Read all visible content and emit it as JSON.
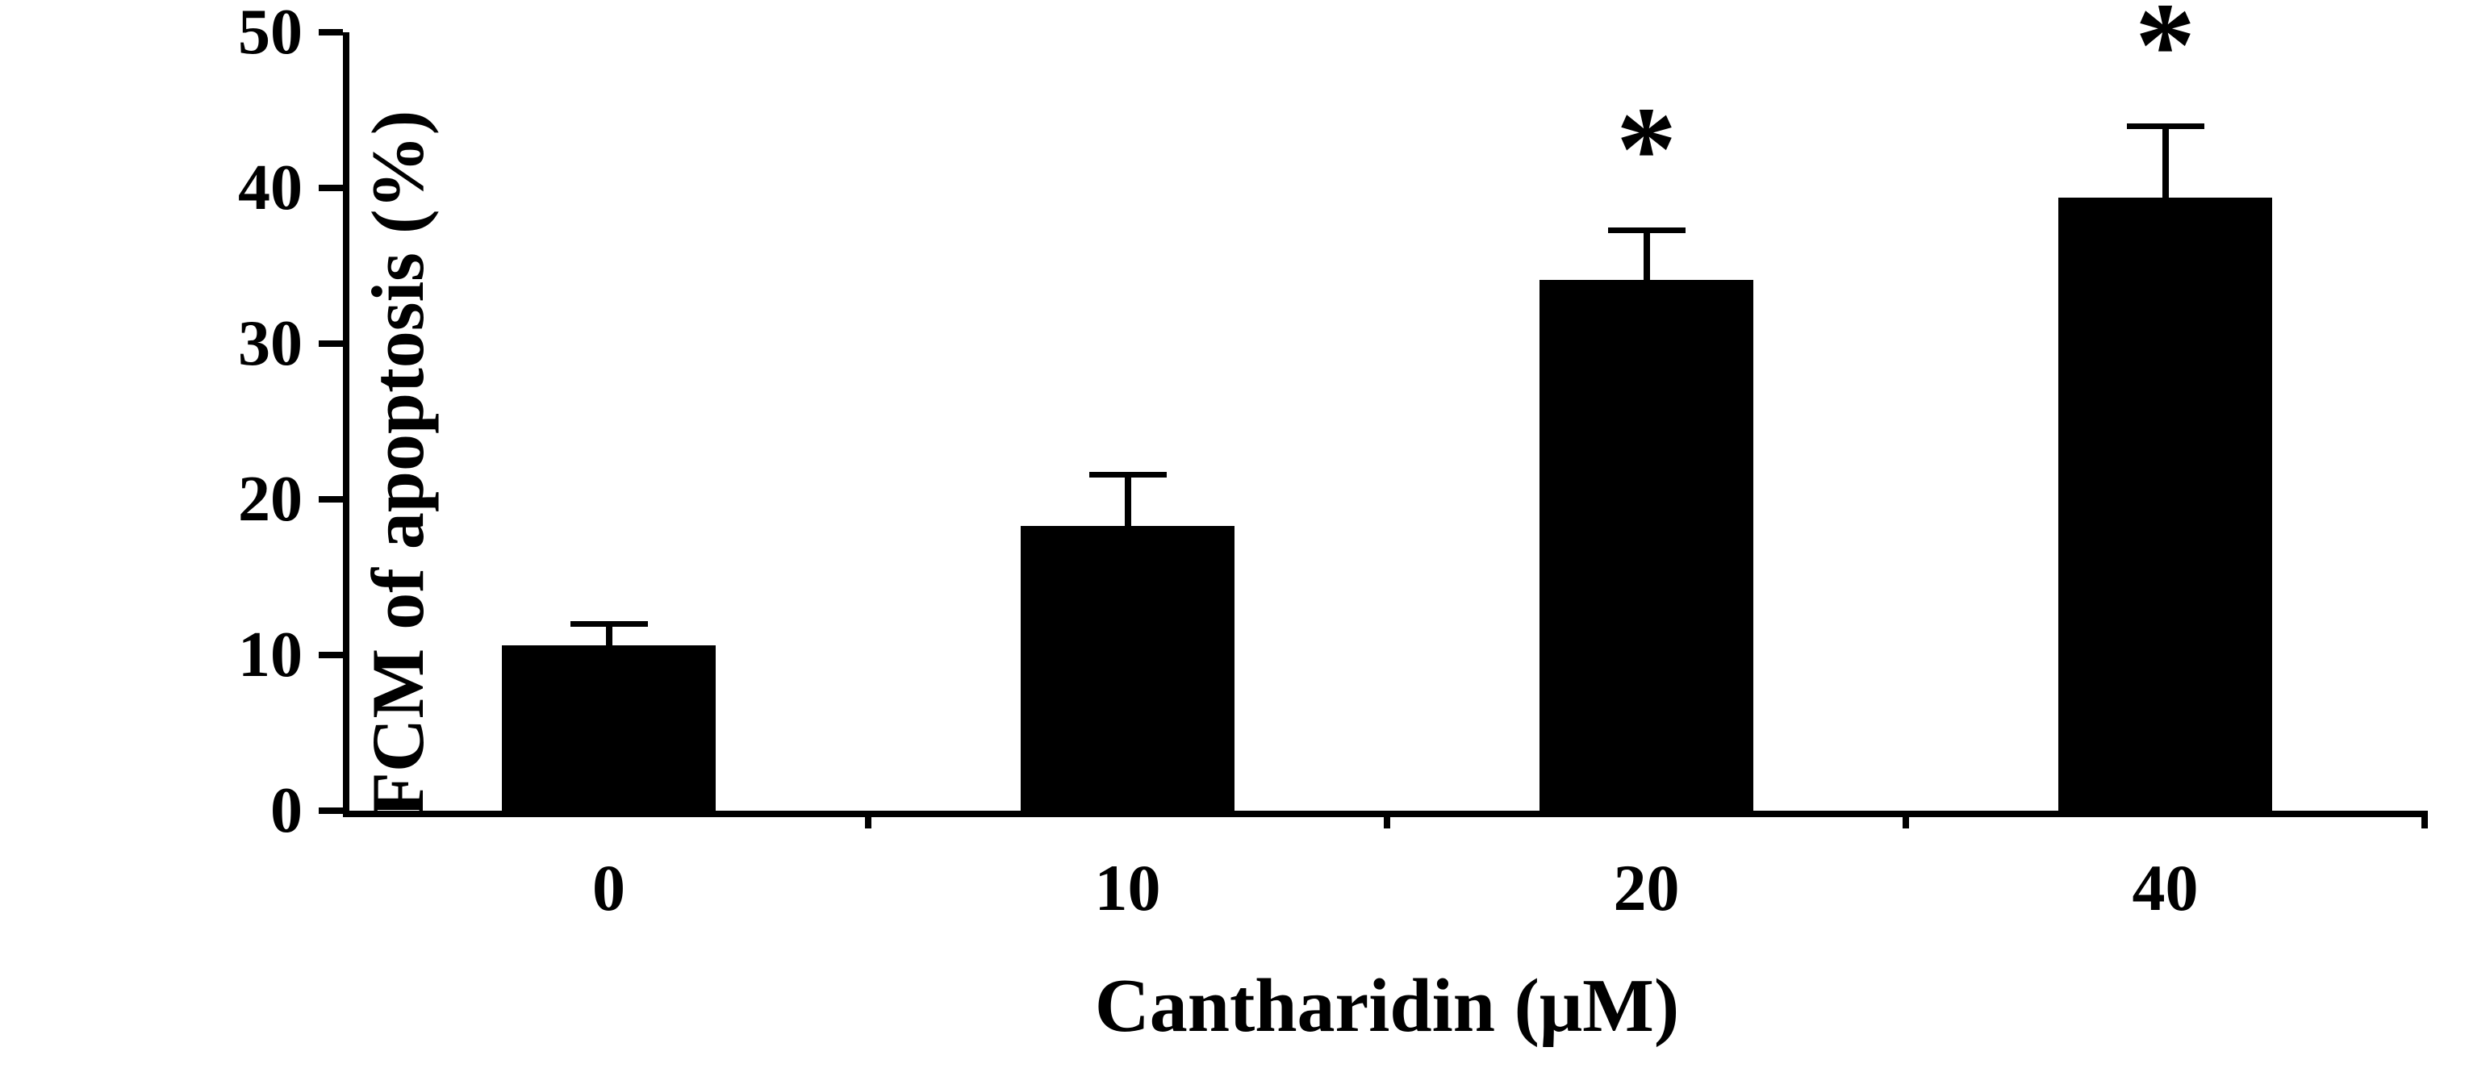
{
  "chart_data": {
    "type": "bar",
    "title": "",
    "categories": [
      "0",
      "10",
      "20",
      "40"
    ],
    "values": [
      10.6,
      18.3,
      34.1,
      39.4
    ],
    "errors": [
      1.4,
      3.3,
      3.2,
      4.6
    ],
    "annotations": [
      "",
      "",
      "*",
      "*"
    ],
    "xlabel": "Cantharidin (μM)",
    "ylabel": "FCM of apoptosis (%)",
    "ylim": [
      0,
      50
    ],
    "yticks": [
      0,
      10,
      20,
      30,
      40,
      50
    ],
    "bar_color": "#000000",
    "axis_color": "#000000",
    "background": "#ffffff",
    "grid": false,
    "legend": false
  }
}
